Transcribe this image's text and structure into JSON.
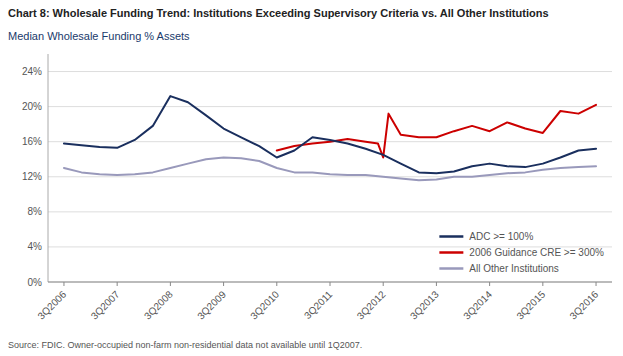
{
  "chart_data": {
    "type": "line",
    "title": "Chart 8: Wholesale Funding Trend: Institutions Exceeding Supervisory Criteria vs. All Other Institutions",
    "subtitle": "Median Wholesale Funding % Assets",
    "annotations": [
      "Source: FDIC. Owner-occupied non-farm non-residential data not available until 1Q2007."
    ],
    "xlim": [
      -0.3,
      10.3
    ],
    "xticks": [
      {
        "value": 0,
        "label": "3Q2006"
      },
      {
        "value": 1,
        "label": "3Q2007"
      },
      {
        "value": 2,
        "label": "3Q2008"
      },
      {
        "value": 3,
        "label": "3Q2009"
      },
      {
        "value": 4,
        "label": "3Q2010"
      },
      {
        "value": 5,
        "label": "3Q2011"
      },
      {
        "value": 6,
        "label": "3Q2012"
      },
      {
        "value": 7,
        "label": "3Q2013"
      },
      {
        "value": 8,
        "label": "3Q2014"
      },
      {
        "value": 9,
        "label": "3Q2015"
      },
      {
        "value": 10,
        "label": "3Q2016"
      }
    ],
    "ylim": [
      0,
      26
    ],
    "yticks": [
      {
        "value": 0,
        "label": "0%"
      },
      {
        "value": 4,
        "label": "4%"
      },
      {
        "value": 8,
        "label": "8%"
      },
      {
        "value": 12,
        "label": "12%"
      },
      {
        "value": 16,
        "label": "16%"
      },
      {
        "value": 20,
        "label": "20%"
      },
      {
        "value": 24,
        "label": "24%"
      }
    ],
    "grid": true,
    "legend": "lower right",
    "series": [
      {
        "name": "ADC >= 100%",
        "color": "#1a2f5e",
        "x": [
          0,
          0.33,
          0.67,
          1.0,
          1.33,
          1.67,
          2.0,
          2.33,
          2.67,
          3.0,
          3.33,
          3.67,
          4.0,
          4.33,
          4.67,
          5.0,
          5.33,
          5.67,
          6.0,
          6.33,
          6.67,
          7.0,
          7.33,
          7.67,
          8.0,
          8.33,
          8.67,
          9.0,
          9.33,
          9.67,
          10.0
        ],
        "values": [
          15.8,
          15.6,
          15.4,
          15.3,
          16.2,
          17.8,
          21.2,
          20.5,
          19.0,
          17.5,
          16.5,
          15.5,
          14.2,
          15.0,
          16.5,
          16.2,
          15.8,
          15.2,
          14.5,
          13.5,
          12.5,
          12.4,
          12.6,
          13.2,
          13.5,
          13.2,
          13.1,
          13.5,
          14.2,
          15.0,
          15.2
        ]
      },
      {
        "name": "2006 Guidance CRE >= 300%",
        "color": "#cc0000",
        "x": [
          4.0,
          4.33,
          4.67,
          5.0,
          5.33,
          5.67,
          5.9,
          6.0,
          6.1,
          6.33,
          6.67,
          7.0,
          7.33,
          7.67,
          8.0,
          8.33,
          8.67,
          9.0,
          9.33,
          9.67,
          10.0
        ],
        "values": [
          15.0,
          15.5,
          15.8,
          16.0,
          16.3,
          16.0,
          15.8,
          14.2,
          19.2,
          16.8,
          16.5,
          16.5,
          17.2,
          17.8,
          17.2,
          18.2,
          17.5,
          17.0,
          19.5,
          19.2,
          20.2
        ]
      },
      {
        "name": "All Other Institutions",
        "color": "#9999bb",
        "x": [
          0,
          0.33,
          0.67,
          1.0,
          1.33,
          1.67,
          2.0,
          2.33,
          2.67,
          3.0,
          3.33,
          3.67,
          4.0,
          4.33,
          4.67,
          5.0,
          5.33,
          5.67,
          6.0,
          6.33,
          6.67,
          7.0,
          7.33,
          7.67,
          8.0,
          8.33,
          8.67,
          9.0,
          9.33,
          9.67,
          10.0
        ],
        "values": [
          13.0,
          12.5,
          12.3,
          12.2,
          12.3,
          12.5,
          13.0,
          13.5,
          14.0,
          14.2,
          14.1,
          13.8,
          13.0,
          12.5,
          12.5,
          12.3,
          12.2,
          12.2,
          12.0,
          11.8,
          11.6,
          11.7,
          12.0,
          12.0,
          12.2,
          12.4,
          12.5,
          12.8,
          13.0,
          13.1,
          13.2
        ]
      }
    ]
  }
}
